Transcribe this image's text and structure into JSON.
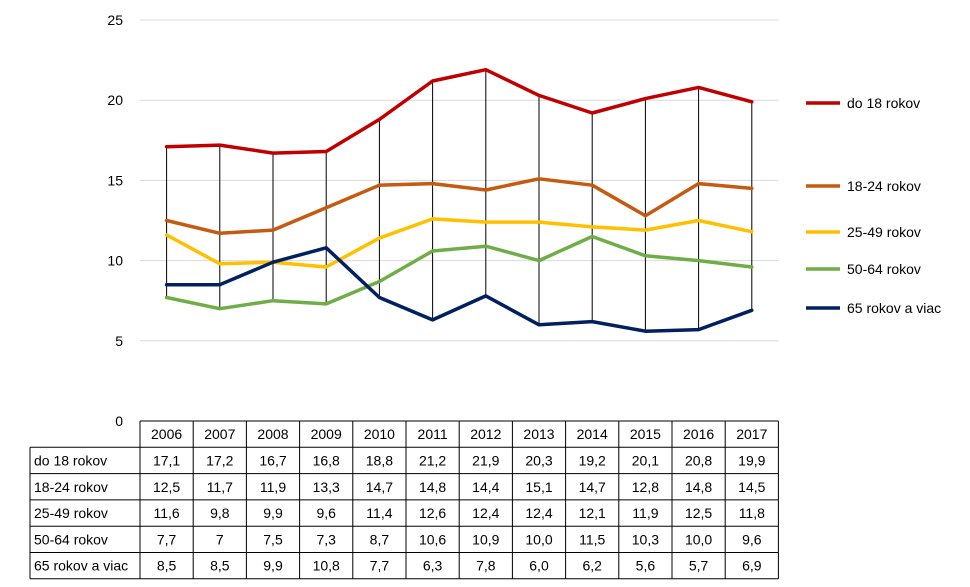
{
  "chart_data": {
    "type": "line",
    "title": "",
    "xlabel": "",
    "ylabel": "",
    "x": [
      "2006",
      "2007",
      "2008",
      "2009",
      "2010",
      "2011",
      "2012",
      "2013",
      "2014",
      "2015",
      "2016",
      "2017"
    ],
    "ylim": [
      0,
      25
    ],
    "yticks": [
      0,
      5,
      10,
      15,
      20,
      25
    ],
    "grid": true,
    "legend_position": "right",
    "series": [
      {
        "name": "do 18 rokov",
        "color": "#C00000",
        "values": [
          17.1,
          17.2,
          16.7,
          16.8,
          18.8,
          21.2,
          21.9,
          20.3,
          19.2,
          20.1,
          20.8,
          19.9
        ],
        "labels": [
          "17,1",
          "17,2",
          "16,7",
          "16,8",
          "18,8",
          "21,2",
          "21,9",
          "20,3",
          "19,2",
          "20,1",
          "20,8",
          "19,9"
        ]
      },
      {
        "name": "18-24 rokov",
        "color": "#C55A11",
        "values": [
          12.5,
          11.7,
          11.9,
          13.3,
          14.7,
          14.8,
          14.4,
          15.1,
          14.7,
          12.8,
          14.8,
          14.5
        ],
        "labels": [
          "12,5",
          "11,7",
          "11,9",
          "13,3",
          "14,7",
          "14,8",
          "14,4",
          "15,1",
          "14,7",
          "12,8",
          "14,8",
          "14,5"
        ]
      },
      {
        "name": "25-49 rokov",
        "color": "#FFC000",
        "values": [
          11.6,
          9.8,
          9.9,
          9.6,
          11.4,
          12.6,
          12.4,
          12.4,
          12.1,
          11.9,
          12.5,
          11.8
        ],
        "labels": [
          "11,6",
          "9,8",
          "9,9",
          "9,6",
          "11,4",
          "12,6",
          "12,4",
          "12,4",
          "12,1",
          "11,9",
          "12,5",
          "11,8"
        ]
      },
      {
        "name": "50-64 rokov",
        "color": "#70AD47",
        "values": [
          7.7,
          7.0,
          7.5,
          7.3,
          8.7,
          10.6,
          10.9,
          10.0,
          11.5,
          10.3,
          10.0,
          9.6
        ],
        "labels": [
          "7,7",
          "7",
          "7,5",
          "7,3",
          "8,7",
          "10,6",
          "10,9",
          "10,0",
          "11,5",
          "10,3",
          "10,0",
          "9,6"
        ]
      },
      {
        "name": "65 rokov a viac",
        "color": "#002060",
        "values": [
          8.5,
          8.5,
          9.9,
          10.8,
          7.7,
          6.3,
          7.8,
          6.0,
          6.2,
          5.6,
          5.7,
          6.9
        ],
        "labels": [
          "8,5",
          "8,5",
          "9,9",
          "10,8",
          "7,7",
          "6,3",
          "7,8",
          "6,0",
          "6,2",
          "5,6",
          "5,7",
          "6,9"
        ]
      }
    ]
  }
}
